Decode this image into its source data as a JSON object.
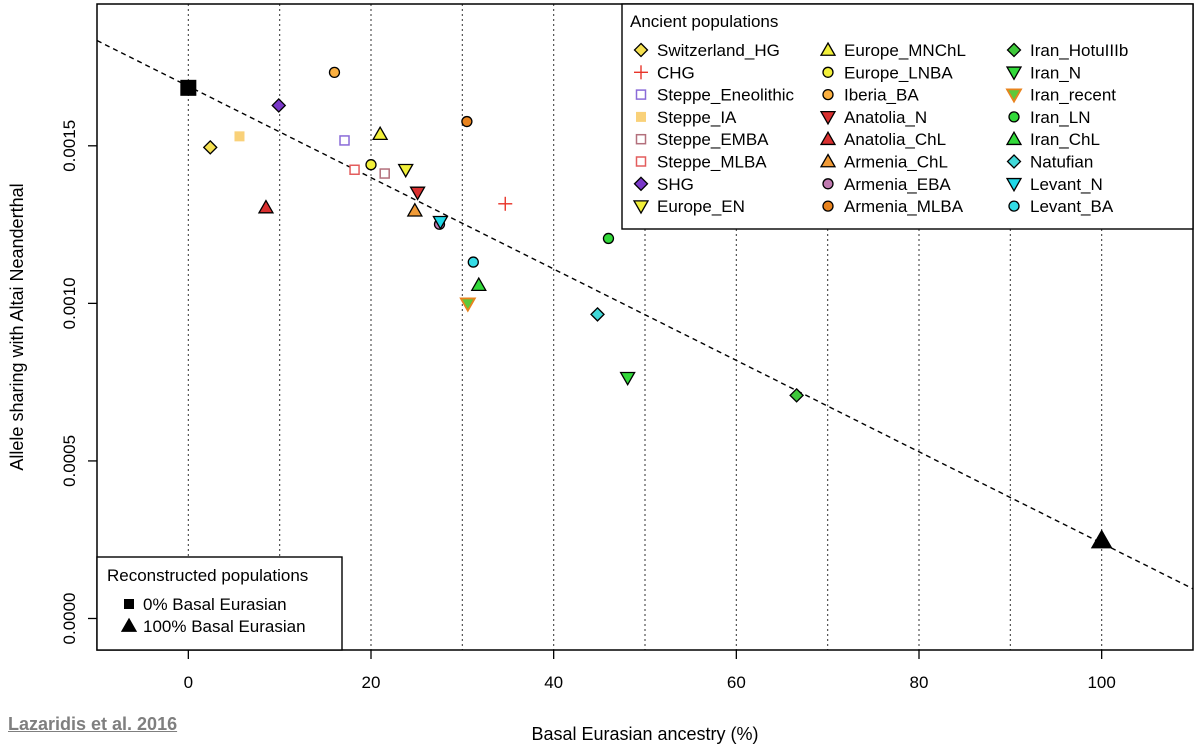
{
  "citation": "Lazaridis et al. 2016",
  "chart_data": {
    "type": "scatter",
    "xlabel": "Basal Eurasian ancestry (%)",
    "ylabel": "Allele sharing with Altai Neanderthal",
    "xlim": [
      -10,
      110
    ],
    "ylim": [
      -0.0001,
      0.00195
    ],
    "xticks": [
      0,
      20,
      40,
      60,
      80,
      100
    ],
    "yticks": [
      0.0,
      0.0005,
      0.001,
      0.0015
    ],
    "ytick_labels": [
      "0.0000",
      "0.0005",
      "0.0010",
      "0.0015"
    ],
    "vgrid": [
      0,
      10,
      20,
      30,
      40,
      50,
      60,
      70,
      80,
      90,
      100
    ],
    "fit_line": {
      "x": [
        -10,
        110
      ],
      "y": [
        0.001834,
        9.4e-05
      ],
      "style": "dashed"
    },
    "legend_ancient": {
      "title": "Ancient populations",
      "position": "top-right",
      "columns": [
        [
          "Switzerland_HG",
          "CHG",
          "Steppe_Eneolithic",
          "Steppe_IA",
          "Steppe_EMBA",
          "Steppe_MLBA",
          "SHG",
          "Europe_EN"
        ],
        [
          "Europe_MNChL",
          "Europe_LNBA",
          "Iberia_BA",
          "Anatolia_N",
          "Anatolia_ChL",
          "Armenia_ChL",
          "Armenia_EBA",
          "Armenia_MLBA"
        ],
        [
          "Iran_HotuIIIb",
          "Iran_N",
          "Iran_recent",
          "Iran_LN",
          "Iran_ChL",
          "Natufian",
          "Levant_N",
          "Levant_BA"
        ]
      ]
    },
    "legend_reconstructed": {
      "title": "Reconstructed populations",
      "position": "bottom-left",
      "items": [
        {
          "name": "0% Basal Eurasian",
          "shape": "square"
        },
        {
          "name": "100% Basal Eurasian",
          "shape": "triangle-up"
        }
      ]
    },
    "series": [
      {
        "name": "Switzerland_HG",
        "shape": "diamond",
        "color": "#f5e050",
        "x": 2.4,
        "y": 0.001495
      },
      {
        "name": "CHG",
        "shape": "plus",
        "color": "#e8352a",
        "x": 34.7,
        "y": 0.001316
      },
      {
        "name": "Steppe_Eneolithic",
        "shape": "square-open",
        "color": "#8a6bd8",
        "x": 17.1,
        "y": 0.001517
      },
      {
        "name": "Steppe_IA",
        "shape": "square-filled",
        "color": "#f9d179",
        "x": 5.6,
        "y": 0.00153
      },
      {
        "name": "Steppe_EMBA",
        "shape": "square-open",
        "color": "#b3707c",
        "x": 21.5,
        "y": 0.001412
      },
      {
        "name": "Steppe_MLBA",
        "shape": "square-open",
        "color": "#e35d5d",
        "x": 18.2,
        "y": 0.001424
      },
      {
        "name": "SHG",
        "shape": "diamond",
        "color": "#7a38c9",
        "x": 9.9,
        "y": 0.001628
      },
      {
        "name": "Europe_EN",
        "shape": "triangle-down",
        "color": "#f2f03a",
        "x": 23.8,
        "y": 0.001424
      },
      {
        "name": "Europe_MNChL",
        "shape": "triangle-up",
        "color": "#f2f03a",
        "x": 21.0,
        "y": 0.001537
      },
      {
        "name": "Europe_LNBA",
        "shape": "circle",
        "color": "#f2f03a",
        "x": 20.0,
        "y": 0.00144
      },
      {
        "name": "Iberia_BA",
        "shape": "circle",
        "color": "#fbb040",
        "x": 16.0,
        "y": 0.001733
      },
      {
        "name": "Anatolia_N",
        "shape": "triangle-down",
        "color": "#d93030",
        "x": 25.1,
        "y": 0.001352
      },
      {
        "name": "Anatolia_ChL",
        "shape": "triangle-up",
        "color": "#d93030",
        "x": 8.5,
        "y": 0.001304
      },
      {
        "name": "Armenia_ChL",
        "shape": "triangle-up",
        "color": "#f09a36",
        "x": 24.8,
        "y": 0.001294
      },
      {
        "name": "Armenia_EBA",
        "shape": "circle",
        "color": "#c07ab0",
        "x": 27.5,
        "y": 0.001251
      },
      {
        "name": "Armenia_MLBA",
        "shape": "circle",
        "color": "#e8831e",
        "x": 30.5,
        "y": 0.001577
      },
      {
        "name": "Iran_HotuIIIb",
        "shape": "diamond",
        "color": "#3ec83a",
        "x": 66.6,
        "y": 0.000708
      },
      {
        "name": "Iran_N",
        "shape": "triangle-down",
        "color": "#33d93a",
        "x": 48.1,
        "y": 0.000764
      },
      {
        "name": "Iran_recent",
        "shape": "triangle-down-bicolor",
        "color": "#e8831e",
        "color2": "#5ec83a",
        "x": 30.6,
        "y": 0.000999
      },
      {
        "name": "Iran_LN",
        "shape": "circle",
        "color": "#33d93a",
        "x": 46.0,
        "y": 0.001206
      },
      {
        "name": "Iran_ChL",
        "shape": "triangle-up",
        "color": "#33d93a",
        "x": 31.8,
        "y": 0.001058
      },
      {
        "name": "Natufian",
        "shape": "diamond",
        "color": "#40d8d8",
        "x": 44.8,
        "y": 0.000965
      },
      {
        "name": "Levant_N",
        "shape": "triangle-down",
        "color": "#20d8e8",
        "x": 27.6,
        "y": 0.001259
      },
      {
        "name": "Levant_BA",
        "shape": "circle",
        "color": "#34dce6",
        "x": 31.2,
        "y": 0.001131
      },
      {
        "name": "0% Basal Eurasian",
        "shape": "square-big",
        "color": "#000000",
        "x": 0,
        "y": 0.001684
      },
      {
        "name": "100% Basal Eurasian",
        "shape": "triangle-up-big",
        "color": "#000000",
        "x": 100,
        "y": 0.000248
      }
    ]
  }
}
